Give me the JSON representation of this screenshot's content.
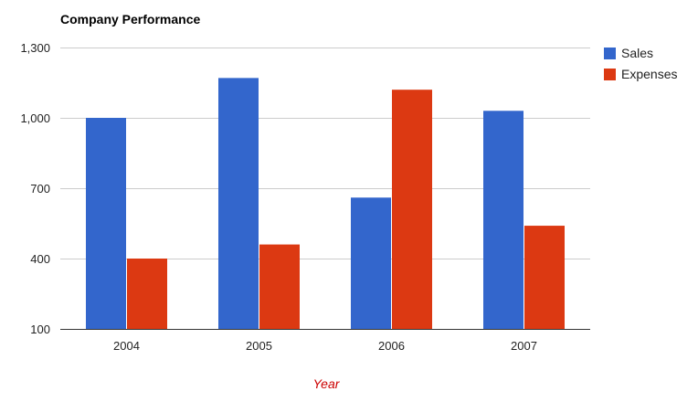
{
  "chart_data": {
    "type": "bar",
    "title": "Company Performance",
    "xlabel": "Year",
    "ylabel": "",
    "categories": [
      "2004",
      "2005",
      "2006",
      "2007"
    ],
    "series": [
      {
        "name": "Sales",
        "color": "#3366cc",
        "values": [
          1000,
          1170,
          660,
          1030
        ]
      },
      {
        "name": "Expenses",
        "color": "#dc3912",
        "values": [
          400,
          460,
          1120,
          540
        ]
      }
    ],
    "ylim": [
      100,
      1300
    ],
    "yticks": [
      100,
      400,
      700,
      1000,
      1300
    ],
    "ytick_labels": [
      "100",
      "400",
      "700",
      "1,000",
      "1,300"
    ],
    "grid": true,
    "legend": "right"
  }
}
